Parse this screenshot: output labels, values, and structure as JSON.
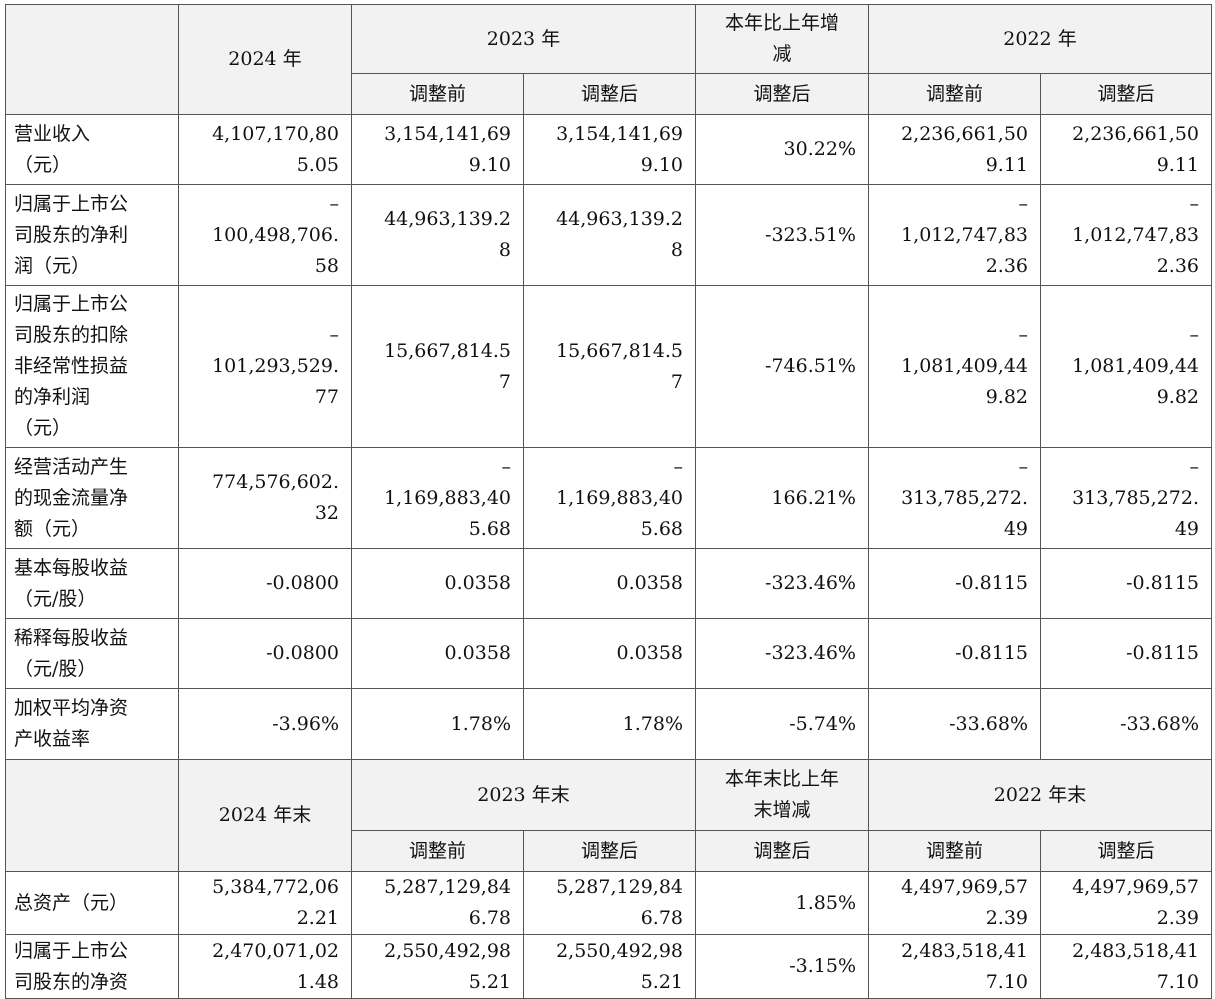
{
  "header1": {
    "y2024": "2024 年",
    "y2023": "2023 年",
    "change": "本年比上年增\n减",
    "y2022": "2022 年",
    "before": "调整前",
    "after": "调整后",
    "change_sub": "调整后"
  },
  "rows1": [
    {
      "label": "营业收入\n（元）",
      "v2024": "4,107,170,80\n5.05",
      "v2023b": "3,154,141,69\n9.10",
      "v2023a": "3,154,141,69\n9.10",
      "chg": "30.22%",
      "v2022b": "2,236,661,50\n9.11",
      "v2022a": "2,236,661,50\n9.11"
    },
    {
      "label": "归属于上市公\n司股东的净利\n润（元）",
      "v2024": "–\n100,498,706.\n58",
      "v2023b": "44,963,139.2\n8",
      "v2023a": "44,963,139.2\n8",
      "chg": "-323.51%",
      "v2022b": "–\n1,012,747,83\n2.36",
      "v2022a": "–\n1,012,747,83\n2.36"
    },
    {
      "label": "归属于上市公\n司股东的扣除\n非经常性损益\n的净利润\n（元）",
      "v2024": "–\n101,293,529.\n77",
      "v2023b": "15,667,814.5\n7",
      "v2023a": "15,667,814.5\n7",
      "chg": "-746.51%",
      "v2022b": "–\n1,081,409,44\n9.82",
      "v2022a": "–\n1,081,409,44\n9.82"
    },
    {
      "label": "经营活动产生\n的现金流量净\n额（元）",
      "v2024": "774,576,602.\n32",
      "v2023b": "–\n1,169,883,40\n5.68",
      "v2023a": "–\n1,169,883,40\n5.68",
      "chg": "166.21%",
      "v2022b": "–\n313,785,272.\n49",
      "v2022a": "–\n313,785,272.\n49"
    },
    {
      "label": "基本每股收益\n（元/股）",
      "v2024": "-0.0800",
      "v2023b": "0.0358",
      "v2023a": "0.0358",
      "chg": "-323.46%",
      "v2022b": "-0.8115",
      "v2022a": "-0.8115"
    },
    {
      "label": "稀释每股收益\n（元/股）",
      "v2024": "-0.0800",
      "v2023b": "0.0358",
      "v2023a": "0.0358",
      "chg": "-323.46%",
      "v2022b": "-0.8115",
      "v2022a": "-0.8115"
    },
    {
      "label": "加权平均净资\n产收益率",
      "v2024": "-3.96%",
      "v2023b": "1.78%",
      "v2023a": "1.78%",
      "chg": "-5.74%",
      "v2022b": "-33.68%",
      "v2022a": "-33.68%"
    }
  ],
  "header2": {
    "y2024": "2024 年末",
    "y2023": "2023 年末",
    "change": "本年末比上年\n末增减",
    "y2022": "2022 年末",
    "before": "调整前",
    "after": "调整后",
    "change_sub": "调整后"
  },
  "rows2": [
    {
      "label": "总资产（元）",
      "v2024": "5,384,772,06\n2.21",
      "v2023b": "5,287,129,84\n6.78",
      "v2023a": "5,287,129,84\n6.78",
      "chg": "1.85%",
      "v2022b": "4,497,969,57\n2.39",
      "v2022a": "4,497,969,57\n2.39"
    },
    {
      "label": "归属于上市公\n司股东的净资",
      "v2024": "2,470,071,02\n1.48",
      "v2023b": "2,550,492,98\n5.21",
      "v2023a": "2,550,492,98\n5.21",
      "chg": "-3.15%",
      "v2022b": "2,483,518,41\n7.10",
      "v2022a": "2,483,518,41\n7.10"
    }
  ]
}
